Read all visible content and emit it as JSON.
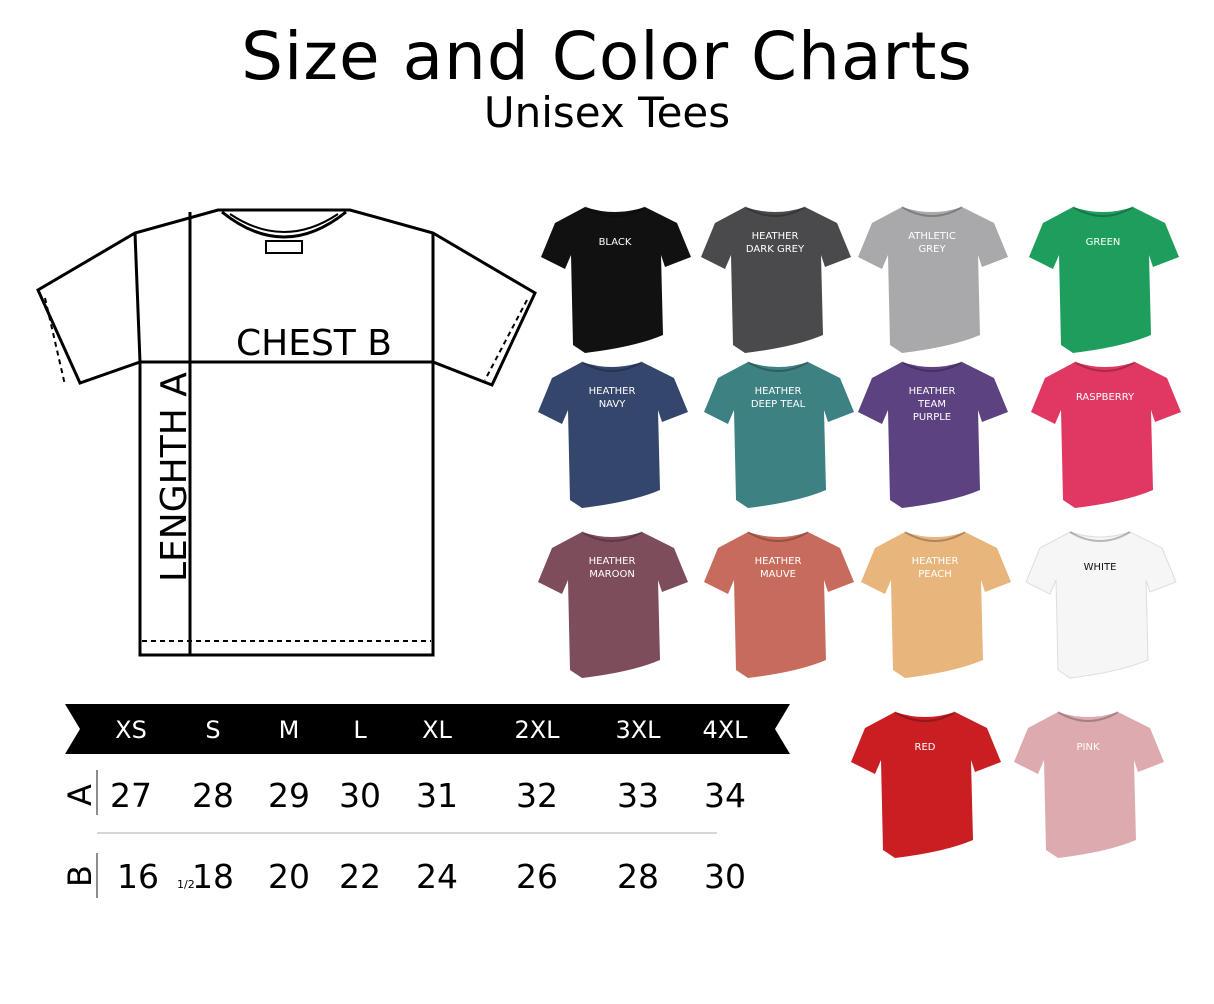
{
  "header": {
    "title": "Size and Color Charts",
    "subtitle": "Unisex Tees"
  },
  "diagram": {
    "chest_label": "CHEST B",
    "length_label": "LENGHTH A"
  },
  "size_table": {
    "sizes": [
      "XS",
      "S",
      "M",
      "L",
      "XL",
      "2XL",
      "3XL",
      "4XL"
    ],
    "rows": [
      {
        "label": "A",
        "values": [
          "27",
          "28",
          "29",
          "30",
          "31",
          "32",
          "33",
          "34"
        ]
      },
      {
        "label": "B",
        "values": [
          "16",
          "18",
          "20",
          "22",
          "24",
          "26",
          "28",
          "30"
        ],
        "first_fraction": "1/2"
      }
    ]
  },
  "colors": [
    {
      "name": [
        "BLACK"
      ],
      "hex": "#111111"
    },
    {
      "name": [
        "HEATHER",
        "DARK GREY"
      ],
      "hex": "#4a4a4c"
    },
    {
      "name": [
        "ATHLETIC",
        "GREY"
      ],
      "hex": "#a9a9ab"
    },
    {
      "name": [
        "GREEN"
      ],
      "hex": "#1e9e5c"
    },
    {
      "name": [
        "HEATHER",
        "NAVY"
      ],
      "hex": "#34466b"
    },
    {
      "name": [
        "HEATHER",
        "DEEP TEAL"
      ],
      "hex": "#3e8183"
    },
    {
      "name": [
        "HEATHER",
        "TEAM",
        "PURPLE"
      ],
      "hex": "#5d4282"
    },
    {
      "name": [
        "RASPBERRY"
      ],
      "hex": "#e03863"
    },
    {
      "name": [
        "HEATHER",
        "MAROON"
      ],
      "hex": "#7e4d5c"
    },
    {
      "name": [
        "HEATHER",
        "MAUVE"
      ],
      "hex": "#c76c5c"
    },
    {
      "name": [
        "HEATHER",
        "PEACH"
      ],
      "hex": "#e8b57c"
    },
    {
      "name": [
        "WHITE"
      ],
      "hex": "#f6f6f6",
      "text": "#111111"
    },
    {
      "name": [
        "RED"
      ],
      "hex": "#c91e22"
    },
    {
      "name": [
        "PINK"
      ],
      "hex": "#ddaab0"
    }
  ]
}
